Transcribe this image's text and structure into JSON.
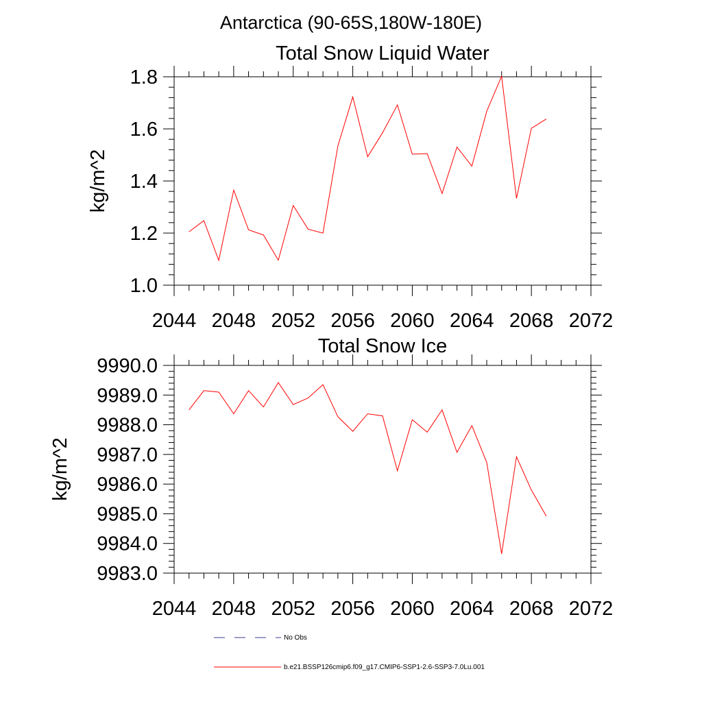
{
  "figure": {
    "super_title": "Antarctica (90-65S,180W-180E)"
  },
  "legend": {
    "entries": [
      {
        "label": "No Obs",
        "style": "dashed",
        "color": "#3b3b8f"
      },
      {
        "label": "b.e21.BSSP126cmip6.f09_g17.CMIP6-SSP1-2.6-SSP3-7.0Lu.001",
        "style": "solid",
        "color": "#ff0000"
      }
    ]
  },
  "chart_data": [
    {
      "type": "line",
      "title": "Total Snow Liquid Water",
      "ylabel": "kg/m^2",
      "xlabel": "",
      "xlim": [
        2044,
        2072
      ],
      "ylim": [
        1.0,
        1.8
      ],
      "xticks": [
        2044,
        2048,
        2052,
        2056,
        2060,
        2064,
        2068,
        2072
      ],
      "xticklabels": [
        "2044",
        "2048",
        "2052",
        "2056",
        "2060",
        "2064",
        "2068",
        "2072"
      ],
      "yticks": [
        1.0,
        1.2,
        1.4,
        1.6,
        1.8
      ],
      "yticklabels": [
        "1.0",
        "1.2",
        "1.4",
        "1.6",
        "1.8"
      ],
      "grid": false,
      "x": [
        2045,
        2046,
        2047,
        2048,
        2049,
        2050,
        2051,
        2052,
        2053,
        2054,
        2055,
        2056,
        2057,
        2058,
        2059,
        2060,
        2061,
        2062,
        2063,
        2064,
        2065,
        2066,
        2067,
        2068,
        2069
      ],
      "series": [
        {
          "color": "#ff0000",
          "values": [
            1.205,
            1.248,
            1.095,
            1.365,
            1.212,
            1.193,
            1.096,
            1.306,
            1.215,
            1.2,
            1.535,
            1.723,
            1.493,
            1.585,
            1.692,
            1.503,
            1.505,
            1.352,
            1.53,
            1.457,
            1.668,
            1.802,
            1.333,
            1.602,
            1.638
          ]
        }
      ]
    },
    {
      "type": "line",
      "title": "Total Snow Ice",
      "ylabel": "kg/m^2",
      "xlabel": "",
      "xlim": [
        2044,
        2072
      ],
      "ylim": [
        9983.0,
        9990.0
      ],
      "xticks": [
        2044,
        2048,
        2052,
        2056,
        2060,
        2064,
        2068,
        2072
      ],
      "xticklabels": [
        "2044",
        "2048",
        "2052",
        "2056",
        "2060",
        "2064",
        "2068",
        "2072"
      ],
      "yticks": [
        9983.0,
        9984.0,
        9985.0,
        9986.0,
        9987.0,
        9988.0,
        9989.0,
        9990.0
      ],
      "yticklabels": [
        "9983.0",
        "9984.0",
        "9985.0",
        "9986.0",
        "9987.0",
        "9988.0",
        "9989.0",
        "9990.0"
      ],
      "grid": false,
      "x": [
        2045,
        2046,
        2047,
        2048,
        2049,
        2050,
        2051,
        2052,
        2053,
        2054,
        2055,
        2056,
        2057,
        2058,
        2059,
        2060,
        2061,
        2062,
        2063,
        2064,
        2065,
        2066,
        2067,
        2068,
        2069
      ],
      "series": [
        {
          "color": "#ff0000",
          "values": [
            9988.5,
            9989.15,
            9989.1,
            9988.37,
            9989.15,
            9988.6,
            9989.42,
            9988.68,
            9988.9,
            9989.35,
            9988.27,
            9987.78,
            9988.37,
            9988.3,
            9986.45,
            9988.17,
            9987.75,
            9988.5,
            9987.07,
            9987.97,
            9986.73,
            9983.65,
            9986.92,
            9985.8,
            9984.92
          ]
        }
      ]
    }
  ]
}
